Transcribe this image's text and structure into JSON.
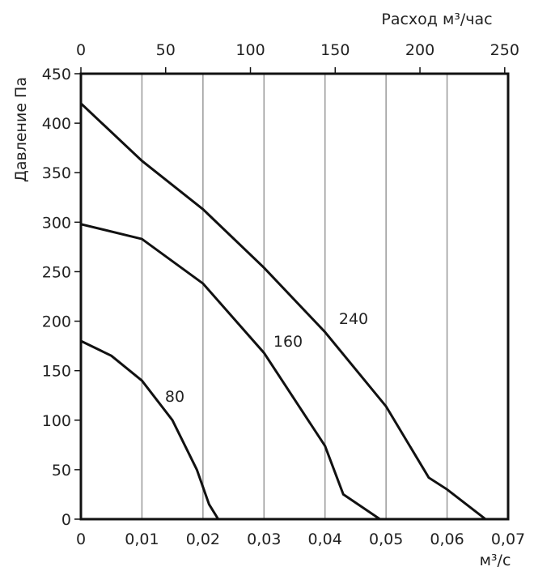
{
  "chart_data": {
    "type": "line",
    "x_label": "м³/с",
    "x2_label": "Расход м³/час",
    "y_label": "Давление Па",
    "xlim": [
      0,
      0.07
    ],
    "xticks": [
      0,
      {
        "value": 0.01,
        "label": "0,01"
      },
      {
        "value": 0.02,
        "label": "0,02"
      },
      {
        "value": 0.03,
        "label": "0,03"
      },
      {
        "value": 0.04,
        "label": "0,04"
      },
      {
        "value": 0.05,
        "label": "0,05"
      },
      {
        "value": 0.06,
        "label": "0,06"
      },
      {
        "value": 0.07,
        "label": "0,07"
      }
    ],
    "x2lim": [
      0,
      252
    ],
    "x2ticks": [
      0,
      50,
      100,
      150,
      200,
      250
    ],
    "ylim": [
      0,
      450
    ],
    "yticks": [
      0,
      50,
      100,
      150,
      200,
      250,
      300,
      350,
      400,
      450
    ],
    "grid": "x",
    "series": [
      {
        "name": "80",
        "color": "#111",
        "x": [
          0,
          0.005,
          0.01,
          0.015,
          0.019,
          0.021,
          0.0225
        ],
        "values": [
          180,
          165,
          140,
          100,
          50,
          15,
          0
        ]
      },
      {
        "name": "160",
        "color": "#111",
        "x": [
          0,
          0.01,
          0.02,
          0.03,
          0.04,
          0.043,
          0.049
        ],
        "values": [
          298,
          283,
          238,
          168,
          74,
          25,
          0
        ]
      },
      {
        "name": "240",
        "color": "#111",
        "x": [
          0,
          0.01,
          0.02,
          0.03,
          0.04,
          0.05,
          0.057,
          0.06,
          0.0663
        ],
        "values": [
          420,
          362,
          313,
          254,
          189,
          114,
          42,
          30,
          0
        ]
      }
    ]
  }
}
